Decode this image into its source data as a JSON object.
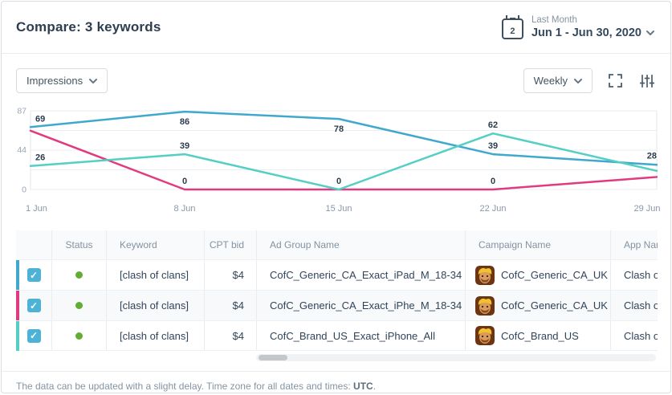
{
  "header": {
    "title": "Compare: 3 keywords",
    "date_picker": {
      "calendar_day": "2",
      "preset": "Last Month",
      "range": "Jun 1 - Jun 30, 2020"
    }
  },
  "toolbar": {
    "metric": "Impressions",
    "granularity": "Weekly"
  },
  "icons": {
    "calendar": "calendar-icon",
    "chevron": "chevron-down-icon",
    "expand": "fullscreen-icon",
    "adjust": "sliders-icon",
    "status": "status-dot",
    "app": "clash-of-clans-app-icon",
    "scrollbar": "horizontal-scrollbar"
  },
  "chart_data": {
    "type": "line",
    "categories": [
      "1 Jun",
      "8 Jun",
      "15 Jun",
      "22 Jun",
      "29 Jun"
    ],
    "ylim": [
      0,
      87
    ],
    "yticks": [
      87,
      44,
      0
    ],
    "grid": true,
    "legend": "none",
    "series": [
      {
        "name": "CofC_Generic_CA_Exact_iPad_M_18-34",
        "color": "#41a8cd",
        "values": [
          69,
          86,
          78,
          39,
          28
        ],
        "labels": [
          "69",
          "86",
          "78",
          "39",
          "28"
        ]
      },
      {
        "name": "CofC_Generic_CA_Exact_iPhe_M_18-34",
        "color": "#e23a7e",
        "values": [
          65,
          0,
          0,
          0,
          13
        ],
        "labels": [
          null,
          "0",
          null,
          "0",
          null
        ]
      },
      {
        "name": "CofC_Brand_US_Exact_iPhone_All",
        "color": "#54cfc3",
        "values": [
          26,
          39,
          0,
          62,
          23
        ],
        "labels": [
          "26",
          "39",
          "0",
          "62",
          null
        ]
      }
    ]
  },
  "table": {
    "columns": [
      "",
      "Status",
      "Keyword",
      "CPT bid",
      "Ad Group Name",
      "Campaign Name",
      "App Name"
    ],
    "rows": [
      {
        "checked": true,
        "status": "active",
        "keyword": "[clash of clans]",
        "cpt_bid": "$4",
        "ad_group": "CofC_Generic_CA_Exact_iPad_M_18-34",
        "campaign": "CofC_Generic_CA_UK",
        "app": "Clash of Clans",
        "stripe_color": "#41a8cd"
      },
      {
        "checked": true,
        "status": "active",
        "keyword": "[clash of clans]",
        "cpt_bid": "$4",
        "ad_group": "CofC_Generic_CA_Exact_iPhe_M_18-34",
        "campaign": "CofC_Generic_CA_UK",
        "app": "Clash of Clans",
        "stripe_color": "#e23a7e"
      },
      {
        "checked": true,
        "status": "active",
        "keyword": "[clash of clans]",
        "cpt_bid": "$4",
        "ad_group": "CofC_Brand_US_Exact_iPhone_All",
        "campaign": "CofC_Brand_US",
        "app": "Clash of Clans",
        "stripe_color": "#54cfc3"
      }
    ]
  },
  "colors": {
    "accent_blue": "#41a8cd",
    "accent_pink": "#e23a7e",
    "accent_teal": "#54cfc3",
    "status_green": "#61ae33",
    "checkbox_blue": "#4cb2d6",
    "title_text": "#2d3e50",
    "grid_line": "#e9eef2"
  },
  "footer": {
    "text": "The data can be updated with a slight delay. Time zone for all dates and times:",
    "timezone": "UTC",
    "suffix": "."
  }
}
